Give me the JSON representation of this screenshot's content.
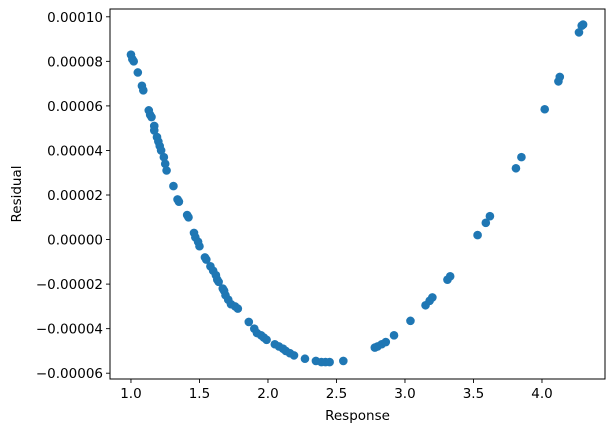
{
  "chart_data": {
    "type": "scatter",
    "title": "",
    "xlabel": "Response",
    "ylabel": "Residual",
    "xlim": [
      0.847,
      4.46
    ],
    "ylim": [
      -6.26e-05,
      0.0001035
    ],
    "grid": false,
    "marker_color": "#1f77b4",
    "x_ticks": [
      {
        "value": 1.0,
        "label": "1.0"
      },
      {
        "value": 1.5,
        "label": "1.5"
      },
      {
        "value": 2.0,
        "label": "2.0"
      },
      {
        "value": 2.5,
        "label": "2.5"
      },
      {
        "value": 3.0,
        "label": "3.0"
      },
      {
        "value": 3.5,
        "label": "3.5"
      },
      {
        "value": 4.0,
        "label": "4.0"
      }
    ],
    "y_ticks": [
      {
        "value": 0.0001,
        "label": "0.00010"
      },
      {
        "value": 8e-05,
        "label": "0.00008"
      },
      {
        "value": 6e-05,
        "label": "0.00006"
      },
      {
        "value": 4e-05,
        "label": "0.00004"
      },
      {
        "value": 2e-05,
        "label": "0.00002"
      },
      {
        "value": 0.0,
        "label": "0.00000"
      },
      {
        "value": -2e-05,
        "label": "−0.00002"
      },
      {
        "value": -4e-05,
        "label": "−0.00004"
      },
      {
        "value": -6e-05,
        "label": "−0.00006"
      }
    ],
    "points": [
      [
        1.0,
        8.3e-05
      ],
      [
        1.01,
        8.1e-05
      ],
      [
        1.02,
        8e-05
      ],
      [
        1.05,
        7.5e-05
      ],
      [
        1.08,
        6.9e-05
      ],
      [
        1.09,
        6.7e-05
      ],
      [
        1.13,
        5.8e-05
      ],
      [
        1.14,
        5.6e-05
      ],
      [
        1.15,
        5.5e-05
      ],
      [
        1.17,
        5.1e-05
      ],
      [
        1.17,
        4.9e-05
      ],
      [
        1.19,
        4.6e-05
      ],
      [
        1.2,
        4.4e-05
      ],
      [
        1.21,
        4.2e-05
      ],
      [
        1.22,
        4e-05
      ],
      [
        1.24,
        3.7e-05
      ],
      [
        1.25,
        3.4e-05
      ],
      [
        1.26,
        3.1e-05
      ],
      [
        1.31,
        2.4e-05
      ],
      [
        1.34,
        1.8e-05
      ],
      [
        1.35,
        1.7e-05
      ],
      [
        1.41,
        1.1e-05
      ],
      [
        1.42,
        1e-05
      ],
      [
        1.46,
        3e-06
      ],
      [
        1.47,
        1e-06
      ],
      [
        1.49,
        -1e-06
      ],
      [
        1.5,
        -3e-06
      ],
      [
        1.54,
        -8e-06
      ],
      [
        1.55,
        -9e-06
      ],
      [
        1.58,
        -1.2e-05
      ],
      [
        1.6,
        -1.4e-05
      ],
      [
        1.62,
        -1.6e-05
      ],
      [
        1.63,
        -1.8e-05
      ],
      [
        1.64,
        -1.9e-05
      ],
      [
        1.67,
        -2.2e-05
      ],
      [
        1.68,
        -2.3e-05
      ],
      [
        1.69,
        -2.5e-05
      ],
      [
        1.71,
        -2.7e-05
      ],
      [
        1.73,
        -2.9e-05
      ],
      [
        1.76,
        -3e-05
      ],
      [
        1.78,
        -3.1e-05
      ],
      [
        1.86,
        -3.7e-05
      ],
      [
        1.9,
        -4e-05
      ],
      [
        1.92,
        -4.2e-05
      ],
      [
        1.95,
        -4.3e-05
      ],
      [
        1.97,
        -4.4e-05
      ],
      [
        1.99,
        -4.5e-05
      ],
      [
        2.05,
        -4.7e-05
      ],
      [
        2.08,
        -4.8e-05
      ],
      [
        2.11,
        -4.9e-05
      ],
      [
        2.13,
        -5e-05
      ],
      [
        2.16,
        -5.1e-05
      ],
      [
        2.19,
        -5.2e-05
      ],
      [
        2.27,
        -5.35e-05
      ],
      [
        2.35,
        -5.45e-05
      ],
      [
        2.39,
        -5.5e-05
      ],
      [
        2.42,
        -5.5e-05
      ],
      [
        2.45,
        -5.5e-05
      ],
      [
        2.55,
        -5.45e-05
      ],
      [
        2.78,
        -4.85e-05
      ],
      [
        2.8,
        -4.8e-05
      ],
      [
        2.83,
        -4.7e-05
      ],
      [
        2.86,
        -4.6e-05
      ],
      [
        2.92,
        -4.3e-05
      ],
      [
        3.04,
        -3.65e-05
      ],
      [
        3.15,
        -2.95e-05
      ],
      [
        3.18,
        -2.75e-05
      ],
      [
        3.2,
        -2.6e-05
      ],
      [
        3.31,
        -1.8e-05
      ],
      [
        3.33,
        -1.65e-05
      ],
      [
        3.53,
        2e-06
      ],
      [
        3.59,
        7.5e-06
      ],
      [
        3.62,
        1.05e-05
      ],
      [
        3.81,
        3.2e-05
      ],
      [
        3.85,
        3.7e-05
      ],
      [
        4.02,
        5.85e-05
      ],
      [
        4.12,
        7.1e-05
      ],
      [
        4.13,
        7.3e-05
      ],
      [
        4.27,
        9.3e-05
      ],
      [
        4.29,
        9.6e-05
      ],
      [
        4.3,
        9.65e-05
      ]
    ]
  }
}
